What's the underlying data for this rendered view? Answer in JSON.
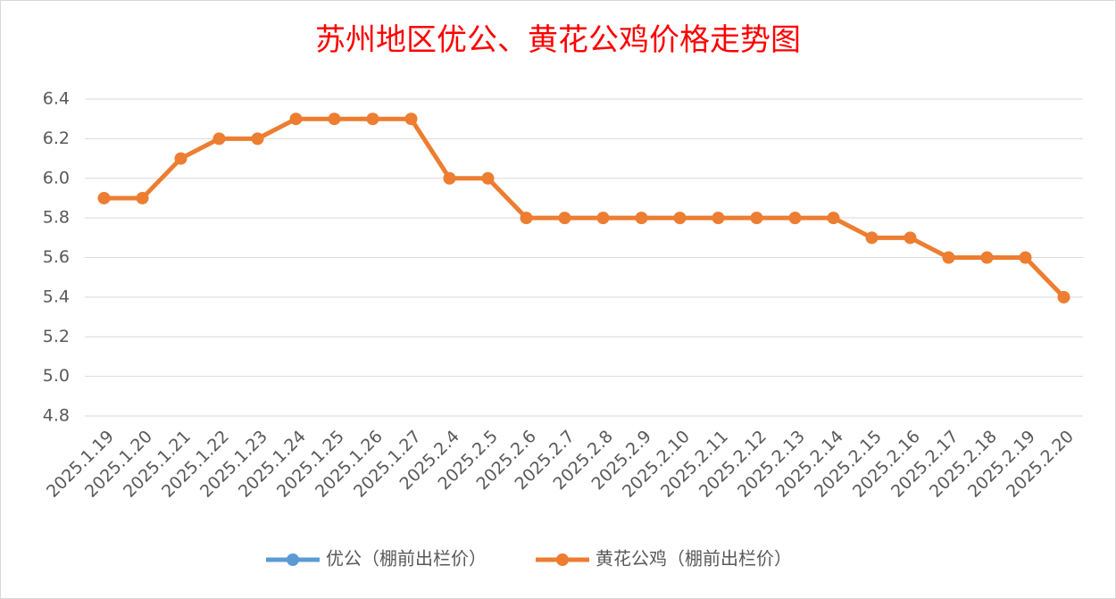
{
  "chart_data": {
    "type": "line",
    "title": "苏州地区优公、黄花公鸡价格走势图",
    "categories": [
      "2025.1.19",
      "2025.1.20",
      "2025.1.21",
      "2025.1.22",
      "2025.1.23",
      "2025.1.24",
      "2025.1.25",
      "2025.1.26",
      "2025.1.27",
      "2025.2.4",
      "2025.2.5",
      "2025.2.6",
      "2025.2.7",
      "2025.2.8",
      "2025.2.9",
      "2025.2.10",
      "2025.2.11",
      "2025.2.12",
      "2025.2.13",
      "2025.2.14",
      "2025.2.15",
      "2025.2.16",
      "2025.2.17",
      "2025.2.18",
      "2025.2.19",
      "2025.2.20"
    ],
    "series": [
      {
        "name": "优公（棚前出栏价）",
        "color": "#5b9bd5",
        "values": [
          null,
          null,
          null,
          null,
          null,
          null,
          null,
          null,
          null,
          null,
          null,
          null,
          null,
          null,
          null,
          null,
          null,
          null,
          null,
          null,
          null,
          null,
          null,
          null,
          null,
          null
        ]
      },
      {
        "name": "黄花公鸡（棚前出栏价）",
        "color": "#ed7d31",
        "values": [
          5.9,
          5.9,
          6.1,
          6.2,
          6.2,
          6.3,
          6.3,
          6.3,
          6.3,
          6.0,
          6.0,
          5.8,
          5.8,
          5.8,
          5.8,
          5.8,
          5.8,
          5.8,
          5.8,
          5.8,
          5.7,
          5.7,
          5.6,
          5.6,
          5.6,
          5.4
        ]
      }
    ],
    "ylim": [
      4.8,
      6.4
    ],
    "yticks": [
      {
        "value": 4.8,
        "label": "4.8"
      },
      {
        "value": 5.0,
        "label": "5.0"
      },
      {
        "value": 5.2,
        "label": "5.2"
      },
      {
        "value": 5.4,
        "label": "5.4"
      },
      {
        "value": 5.6,
        "label": "5.6"
      },
      {
        "value": 5.8,
        "label": "5.8"
      },
      {
        "value": 6.0,
        "label": "6.0"
      },
      {
        "value": 6.2,
        "label": "6.2"
      },
      {
        "value": 6.4,
        "label": "6.4"
      }
    ],
    "grid": true,
    "legend": "bottom"
  }
}
